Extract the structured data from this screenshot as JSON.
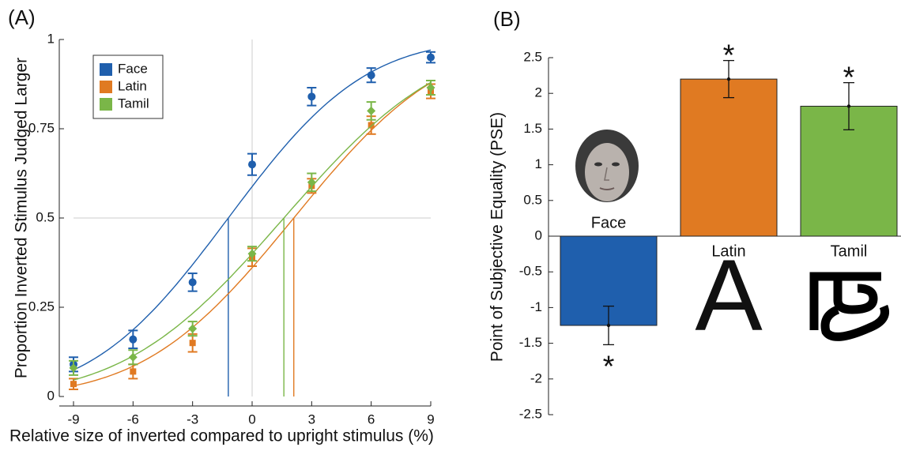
{
  "chart_data": [
    {
      "type": "scatter",
      "panel_label": "(A)",
      "xlabel": "Relative size of inverted compared to upright stimulus (%)",
      "ylabel": "Proportion Inverted Stimulus Judged Larger",
      "x": [
        -9,
        -6,
        -3,
        0,
        3,
        6,
        9
      ],
      "series": [
        {
          "name": "Face",
          "color": "#1f5fad",
          "marker": "circle",
          "values": [
            0.09,
            0.16,
            0.32,
            0.65,
            0.84,
            0.9,
            0.95
          ],
          "errors": [
            0.02,
            0.025,
            0.025,
            0.03,
            0.025,
            0.02,
            0.015
          ],
          "pse": -1.2,
          "sigma": 5.4
        },
        {
          "name": "Latin",
          "color": "#e07a22",
          "marker": "square",
          "values": [
            0.035,
            0.07,
            0.15,
            0.39,
            0.59,
            0.76,
            0.855
          ],
          "errors": [
            0.015,
            0.02,
            0.025,
            0.025,
            0.02,
            0.025,
            0.02
          ],
          "pse": 2.1,
          "sigma": 5.9
        },
        {
          "name": "Tamil",
          "color": "#7ab648",
          "marker": "diamond",
          "values": [
            0.08,
            0.11,
            0.19,
            0.4,
            0.6,
            0.8,
            0.865
          ],
          "errors": [
            0.02,
            0.02,
            0.02,
            0.02,
            0.025,
            0.025,
            0.02
          ],
          "pse": 1.6,
          "sigma": 6.3
        }
      ],
      "xlim": [
        -9,
        9
      ],
      "xticks": [
        -9,
        -6,
        -3,
        0,
        3,
        6,
        9
      ],
      "ylim": [
        0,
        1
      ],
      "yticks": [
        0,
        0.25,
        0.5,
        0.75,
        1
      ],
      "reference_lines": {
        "x": 0,
        "y": 0.5
      },
      "legend": "upper left"
    },
    {
      "type": "bar",
      "panel_label": "(B)",
      "ylabel": "Point of Subjective Equality (PSE)",
      "categories": [
        "Face",
        "Latin",
        "Tamil"
      ],
      "values": [
        -1.25,
        2.2,
        1.82
      ],
      "errors": [
        0.27,
        0.26,
        0.33
      ],
      "colors": [
        "#1f5fad",
        "#e07a22",
        "#7ab648"
      ],
      "annotations": [
        "*",
        "*",
        "*"
      ],
      "stimulus_text": "A",
      "ylim": [
        -2.5,
        2.5
      ],
      "yticks": [
        -2.5,
        -2,
        -1.5,
        -1,
        -0.5,
        0,
        0.5,
        1,
        1.5,
        2,
        2.5
      ]
    }
  ]
}
